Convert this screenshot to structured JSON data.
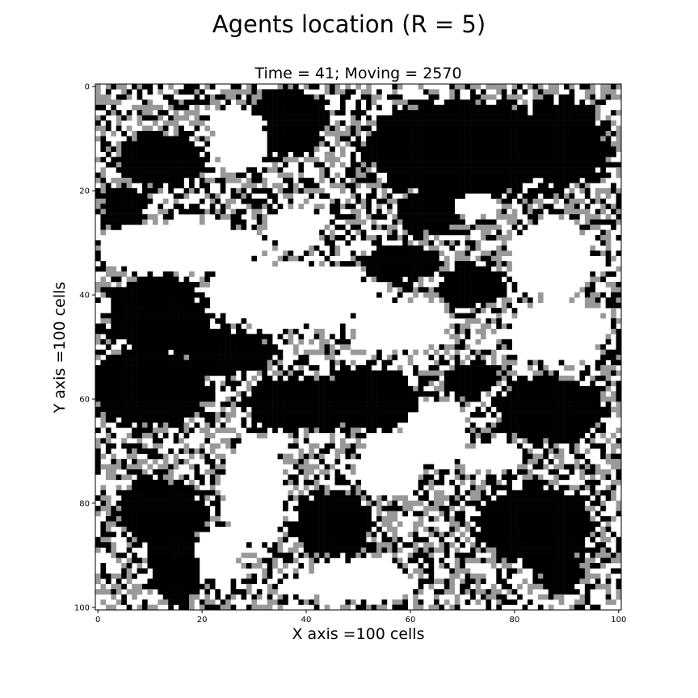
{
  "chart_data": {
    "type": "heatmap",
    "title": "Agents location (R = 5)",
    "subtitle": "Time = 41; Moving = 2570",
    "xlabel": "X axis =100 cells",
    "ylabel": "Y axis =100 cells",
    "xlim": [
      0,
      101
    ],
    "ylim": [
      101,
      0
    ],
    "x_ticks": [
      "0",
      "20",
      "40",
      "60",
      "80",
      "100"
    ],
    "y_ticks": [
      "0",
      "20",
      "40",
      "60",
      "80",
      "100"
    ],
    "grid": false,
    "color_levels": [
      {
        "level": "empty",
        "color": "#ffffff"
      },
      {
        "level": "agent group A",
        "color": "#999999"
      },
      {
        "level": "agent group B",
        "color": "#000000"
      }
    ],
    "large_regions": [
      {
        "color": "#000000",
        "cx": 36,
        "cy": 7,
        "rx": 7,
        "ry": 6
      },
      {
        "color": "#000000",
        "cx": 70,
        "cy": 12,
        "rx": 18,
        "ry": 9
      },
      {
        "color": "#000000",
        "cx": 89,
        "cy": 11,
        "rx": 8,
        "ry": 8
      },
      {
        "color": "#000000",
        "cx": 12,
        "cy": 14,
        "rx": 8,
        "ry": 5
      },
      {
        "color": "#000000",
        "cx": 5,
        "cy": 23,
        "rx": 4,
        "ry": 4
      },
      {
        "color": "#000000",
        "cx": 64,
        "cy": 24,
        "rx": 6,
        "ry": 4
      },
      {
        "color": "#000000",
        "cx": 58,
        "cy": 34,
        "rx": 7,
        "ry": 3
      },
      {
        "color": "#000000",
        "cx": 72,
        "cy": 38,
        "rx": 6,
        "ry": 4
      },
      {
        "color": "#000000",
        "cx": 12,
        "cy": 44,
        "rx": 10,
        "ry": 7
      },
      {
        "color": "#000000",
        "cx": 10,
        "cy": 58,
        "rx": 11,
        "ry": 7
      },
      {
        "color": "#000000",
        "cx": 25,
        "cy": 51,
        "rx": 8,
        "ry": 4
      },
      {
        "color": "#000000",
        "cx": 38,
        "cy": 61,
        "rx": 9,
        "ry": 5
      },
      {
        "color": "#000000",
        "cx": 52,
        "cy": 60,
        "rx": 9,
        "ry": 6
      },
      {
        "color": "#000000",
        "cx": 72,
        "cy": 56,
        "rx": 5,
        "ry": 3
      },
      {
        "color": "#000000",
        "cx": 87,
        "cy": 62,
        "rx": 10,
        "ry": 6
      },
      {
        "color": "#000000",
        "cx": 12,
        "cy": 82,
        "rx": 8,
        "ry": 6
      },
      {
        "color": "#000000",
        "cx": 15,
        "cy": 92,
        "rx": 5,
        "ry": 7
      },
      {
        "color": "#000000",
        "cx": 45,
        "cy": 84,
        "rx": 7,
        "ry": 6
      },
      {
        "color": "#000000",
        "cx": 84,
        "cy": 84,
        "rx": 11,
        "ry": 7
      },
      {
        "color": "#000000",
        "cx": 89,
        "cy": 93,
        "rx": 4,
        "ry": 4
      },
      {
        "color": "#ffffff",
        "cx": 27,
        "cy": 10,
        "rx": 5,
        "ry": 6
      },
      {
        "color": "#ffffff",
        "cx": 16,
        "cy": 31,
        "rx": 15,
        "ry": 5
      },
      {
        "color": "#ffffff",
        "cx": 37,
        "cy": 40,
        "rx": 16,
        "ry": 6
      },
      {
        "color": "#ffffff",
        "cx": 58,
        "cy": 46,
        "rx": 9,
        "ry": 5
      },
      {
        "color": "#ffffff",
        "cx": 87,
        "cy": 33,
        "rx": 8,
        "ry": 7
      },
      {
        "color": "#ffffff",
        "cx": 88,
        "cy": 47,
        "rx": 9,
        "ry": 6
      },
      {
        "color": "#ffffff",
        "cx": 73,
        "cy": 23,
        "rx": 4,
        "ry": 2
      },
      {
        "color": "#ffffff",
        "cx": 38,
        "cy": 27,
        "rx": 5,
        "ry": 4
      },
      {
        "color": "#ffffff",
        "cx": 30,
        "cy": 78,
        "rx": 6,
        "ry": 10
      },
      {
        "color": "#ffffff",
        "cx": 56,
        "cy": 73,
        "rx": 6,
        "ry": 6
      },
      {
        "color": "#ffffff",
        "cx": 65,
        "cy": 67,
        "rx": 6,
        "ry": 6
      },
      {
        "color": "#ffffff",
        "cx": 50,
        "cy": 95,
        "rx": 10,
        "ry": 4
      },
      {
        "color": "#ffffff",
        "cx": 23,
        "cy": 90,
        "rx": 4,
        "ry": 5
      },
      {
        "color": "#ffffff",
        "cx": 76,
        "cy": 71,
        "rx": 5,
        "ry": 3
      }
    ],
    "scattered_pattern": "isolated black, gray and white cells fill the remaining area between the large regions"
  }
}
